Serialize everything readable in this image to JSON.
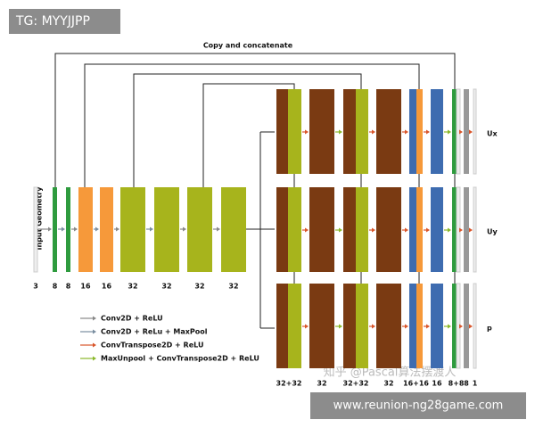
{
  "badge": "TG: MYYJJPP",
  "header": {
    "title": "Copy and concatenate"
  },
  "input_label": "Input Geometry",
  "encoder": {
    "channels": [
      "3",
      "8",
      "8",
      "16",
      "16",
      "32",
      "32",
      "32",
      "32"
    ]
  },
  "decoder": {
    "channels": [
      "32+32",
      "32",
      "32+32",
      "32",
      "16+16",
      "16",
      "8+8",
      "8",
      "1"
    ]
  },
  "outputs": [
    "Ux",
    "Uy",
    "p"
  ],
  "legend": [
    "Conv2D + ReLU",
    "Conv2D + ReLu + MaxPool",
    "ConvTranspose2D + ReLU",
    "MaxUnpool + ConvTranspose2D + ReLU"
  ],
  "watermark": "知乎 @Pascal算法摆渡人",
  "footer": "www.reunion-ng28game.com"
}
